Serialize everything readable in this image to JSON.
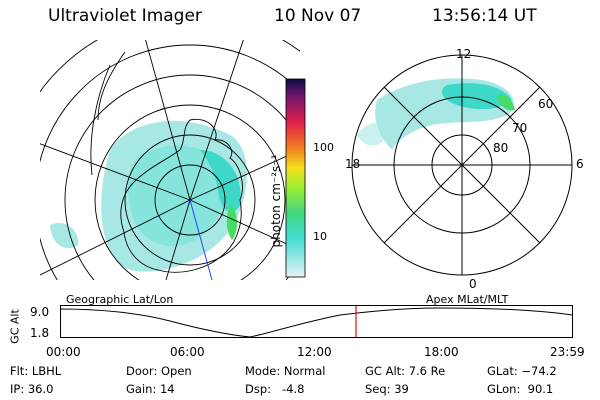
{
  "header": {
    "instrument": "Ultraviolet Imager",
    "date": "10 Nov 07",
    "time": "13:56:14 UT"
  },
  "colorbar": {
    "unit_label": "photon cm⁻²s⁻¹",
    "ticks": [
      "100",
      "10"
    ]
  },
  "polar_plot": {
    "mlt_labels": [
      "12",
      "18",
      "6",
      "0"
    ],
    "lat_labels": [
      "60",
      "70",
      "80"
    ]
  },
  "panel_labels": {
    "left": "Geographic Lat/Lon",
    "right": "Apex MLat/MLT"
  },
  "altitude_plot": {
    "ylabel": "GC Alt",
    "ytick_top": "9.0",
    "ytick_bottom": "1.8",
    "xticks": [
      "00:00",
      "06:00",
      "12:00",
      "18:00",
      "23:59"
    ]
  },
  "status": {
    "flt": "Flt: LBHL",
    "ip": "IP: 36.0",
    "door": "Door: Open",
    "gain": "Gain: 14",
    "mode": "Mode: Normal",
    "dsp": "Dsp:   -4.8",
    "gc_alt": "GC Alt: 7.6 Re",
    "seq": "Seq: 39",
    "glat": "GLat: −74.2",
    "glon": "GLon:  90.1"
  },
  "colors": {
    "aurora_low": "#a8e8e4",
    "aurora_mid": "#3ed8c8",
    "aurora_high": "#44dd66",
    "marker": "#e02020"
  }
}
